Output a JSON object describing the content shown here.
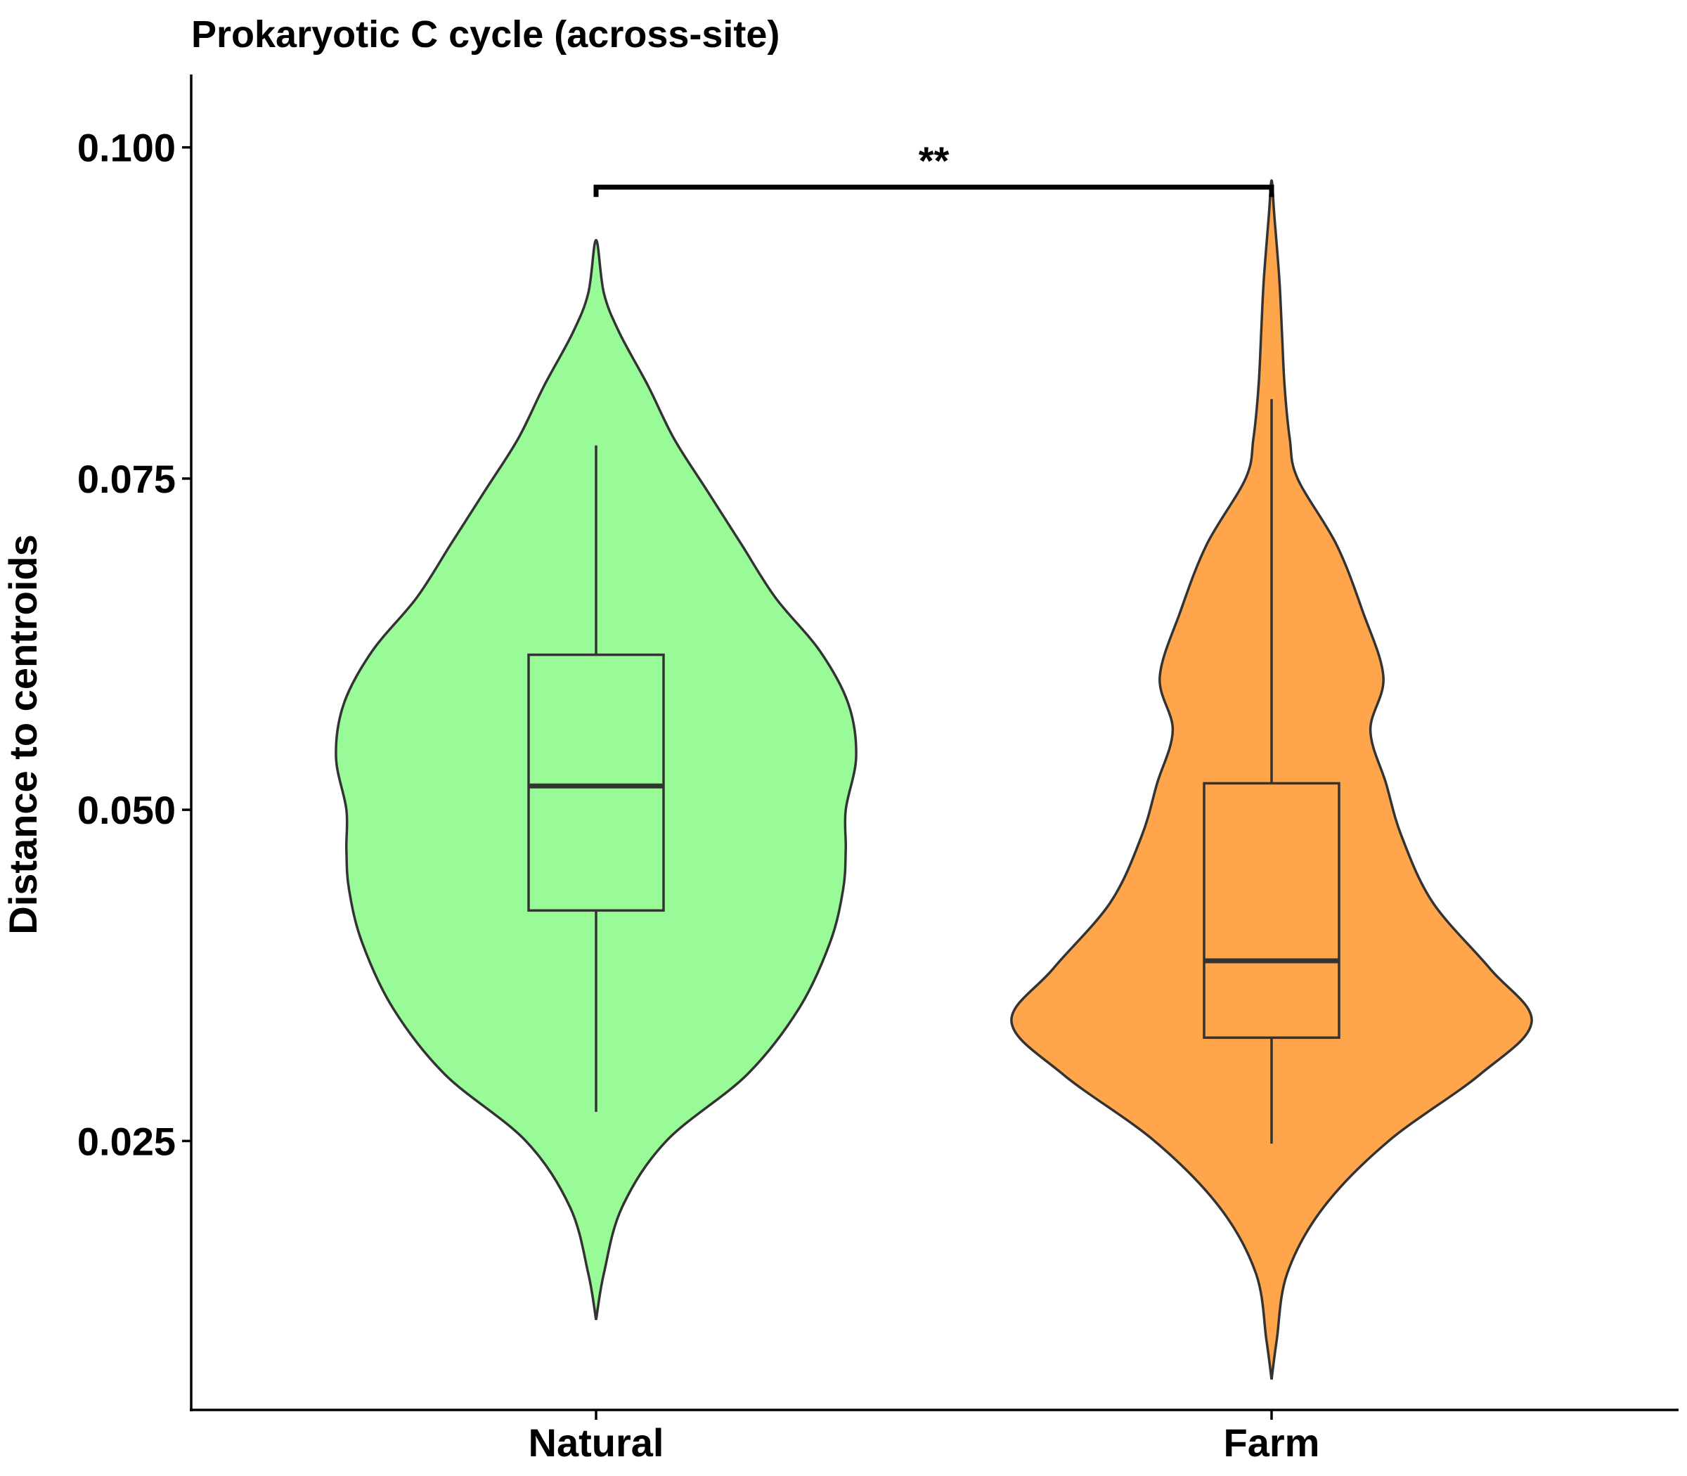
{
  "chart_data": {
    "type": "violin",
    "title": "Prokaryotic C cycle (across-site)",
    "xlabel": "",
    "ylabel": "Distance to centroids",
    "categories": [
      "Natural",
      "Farm"
    ],
    "ylim": [
      0.0047,
      0.1055
    ],
    "yticks": [
      0.025,
      0.05,
      0.075,
      0.1
    ],
    "ytick_labels": [
      "0.025",
      "0.050",
      "0.075",
      "0.100"
    ],
    "grid": false,
    "legend": "none",
    "groups": [
      {
        "name": "Natural",
        "color": "#98FB98",
        "box": {
          "min": 0.0272,
          "q1": 0.0424,
          "median": 0.0518,
          "q3": 0.0617,
          "max": 0.0775
        },
        "violin": {
          "y": [
            0.0115,
            0.015,
            0.02,
            0.025,
            0.03,
            0.035,
            0.04,
            0.044,
            0.047,
            0.05,
            0.054,
            0.058,
            0.062,
            0.066,
            0.07,
            0.074,
            0.078,
            0.082,
            0.086,
            0.089,
            0.093
          ],
          "density": [
            0.0,
            0.03,
            0.1,
            0.27,
            0.58,
            0.78,
            0.9,
            0.95,
            0.96,
            0.96,
            1.0,
            0.97,
            0.86,
            0.69,
            0.56,
            0.43,
            0.3,
            0.2,
            0.09,
            0.03,
            0.0
          ]
        }
      },
      {
        "name": "Farm",
        "color": "#FFA64D",
        "box": {
          "min": 0.0248,
          "q1": 0.0328,
          "median": 0.0386,
          "q3": 0.052,
          "max": 0.081
        },
        "violin": {
          "y": [
            0.007,
            0.01,
            0.015,
            0.02,
            0.025,
            0.03,
            0.034,
            0.038,
            0.043,
            0.048,
            0.052,
            0.056,
            0.06,
            0.065,
            0.07,
            0.075,
            0.078,
            0.082,
            0.086,
            0.09,
            0.095,
            0.0975
          ],
          "density": [
            0.0,
            0.02,
            0.06,
            0.2,
            0.45,
            0.8,
            1.0,
            0.84,
            0.62,
            0.5,
            0.44,
            0.38,
            0.43,
            0.35,
            0.25,
            0.1,
            0.07,
            0.05,
            0.04,
            0.03,
            0.01,
            0.0
          ]
        }
      }
    ],
    "comparisons": [
      {
        "groups": [
          "Natural",
          "Farm"
        ],
        "label": "**",
        "y": 0.097
      }
    ]
  }
}
